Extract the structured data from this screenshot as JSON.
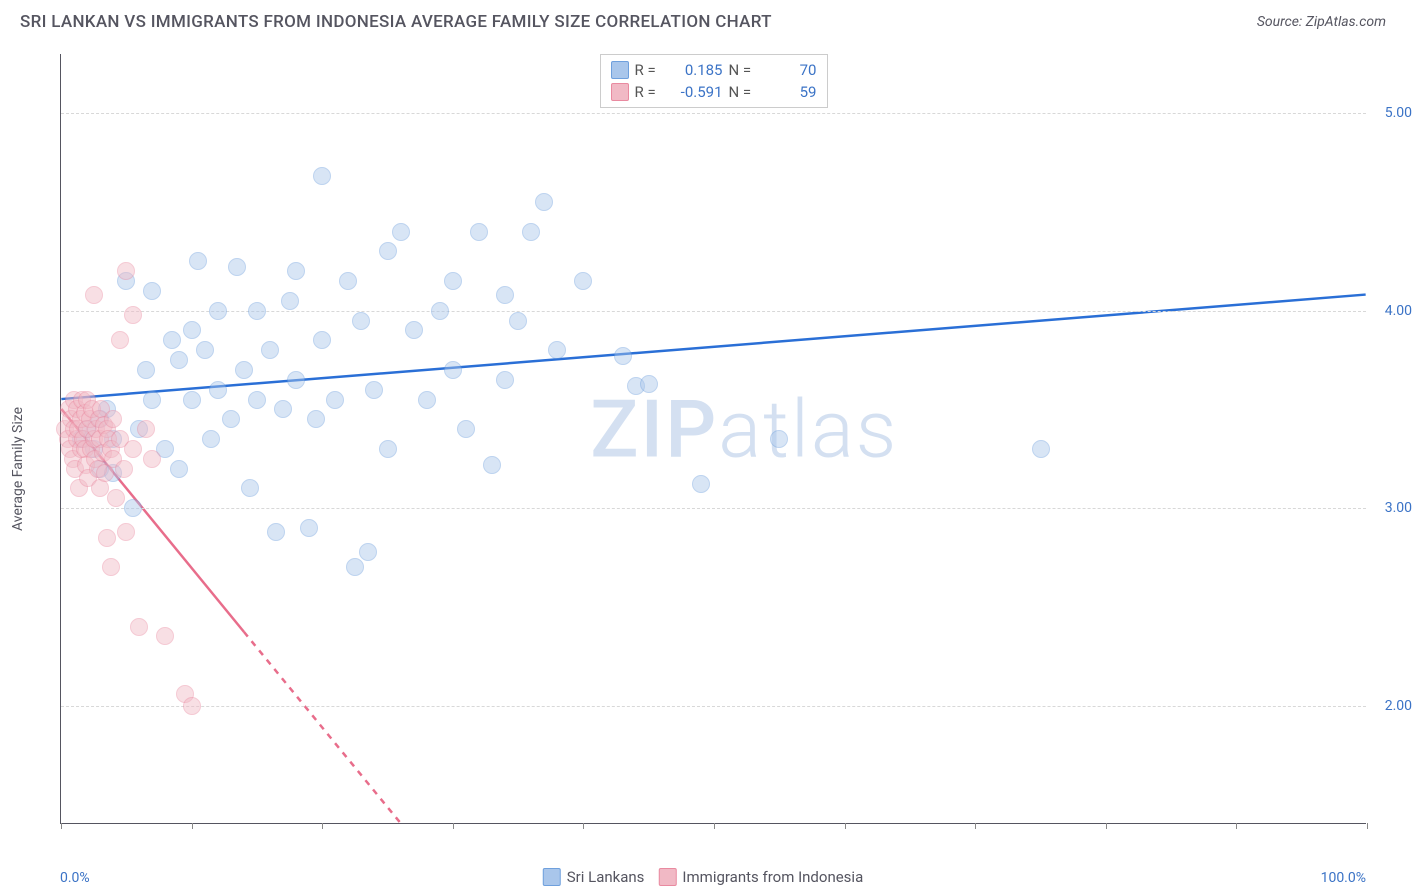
{
  "title": "SRI LANKAN VS IMMIGRANTS FROM INDONESIA AVERAGE FAMILY SIZE CORRELATION CHART",
  "source": "Source: ZipAtlas.com",
  "watermark_zip": "ZIP",
  "watermark_atlas": "atlas",
  "chart": {
    "type": "scatter",
    "xlim": [
      0,
      100
    ],
    "ylim": [
      1.4,
      5.3
    ],
    "x_tick_positions": [
      0,
      10,
      20,
      30,
      40,
      50,
      60,
      70,
      80,
      90,
      100
    ],
    "x_tick_labels": {
      "min": "0.0%",
      "max": "100.0%"
    },
    "y_ticks": [
      2.0,
      3.0,
      4.0,
      5.0
    ],
    "y_tick_labels": [
      "2.00",
      "3.00",
      "4.00",
      "5.00"
    ],
    "ylabel": "Average Family Size",
    "background_color": "#ffffff",
    "grid_color": "#d8d8d8",
    "axis_color": "#555560",
    "tick_label_color": "#3b73c6",
    "marker_radius": 9,
    "marker_opacity": 0.45,
    "series": [
      {
        "name": "Sri Lankans",
        "fill": "#a9c6eb",
        "stroke": "#6fa0dd",
        "line_color": "#2a6fd6",
        "line_width": 2.5,
        "trend": {
          "x1": 0,
          "y1": 3.55,
          "x2": 100,
          "y2": 4.08,
          "solid_until_x": 100
        },
        "R_label": "R =",
        "R": "0.185",
        "N_label": "N =",
        "N": "70",
        "points": [
          [
            1.5,
            3.35
          ],
          [
            2,
            3.4
          ],
          [
            2.5,
            3.3
          ],
          [
            3,
            3.2
          ],
          [
            3,
            3.45
          ],
          [
            3.5,
            3.5
          ],
          [
            4,
            3.35
          ],
          [
            4,
            3.18
          ],
          [
            5,
            4.15
          ],
          [
            5.5,
            3.0
          ],
          [
            6,
            3.4
          ],
          [
            6.5,
            3.7
          ],
          [
            7,
            3.55
          ],
          [
            7,
            4.1
          ],
          [
            8,
            3.3
          ],
          [
            8.5,
            3.85
          ],
          [
            9,
            3.75
          ],
          [
            9,
            3.2
          ],
          [
            10,
            3.9
          ],
          [
            10,
            3.55
          ],
          [
            10.5,
            4.25
          ],
          [
            11,
            3.8
          ],
          [
            11.5,
            3.35
          ],
          [
            12,
            3.6
          ],
          [
            12,
            4.0
          ],
          [
            13,
            3.45
          ],
          [
            13.5,
            4.22
          ],
          [
            14,
            3.7
          ],
          [
            14.5,
            3.1
          ],
          [
            15,
            3.55
          ],
          [
            15,
            4.0
          ],
          [
            16,
            3.8
          ],
          [
            16.5,
            2.88
          ],
          [
            17,
            3.5
          ],
          [
            17.5,
            4.05
          ],
          [
            18,
            3.65
          ],
          [
            18,
            4.2
          ],
          [
            19,
            2.9
          ],
          [
            19.5,
            3.45
          ],
          [
            20,
            4.68
          ],
          [
            20,
            3.85
          ],
          [
            21,
            3.55
          ],
          [
            22,
            4.15
          ],
          [
            22.5,
            2.7
          ],
          [
            23,
            3.95
          ],
          [
            23.5,
            2.78
          ],
          [
            24,
            3.6
          ],
          [
            25,
            4.3
          ],
          [
            25,
            3.3
          ],
          [
            26,
            4.4
          ],
          [
            27,
            3.9
          ],
          [
            28,
            3.55
          ],
          [
            29,
            4.0
          ],
          [
            30,
            4.15
          ],
          [
            30,
            3.7
          ],
          [
            31,
            3.4
          ],
          [
            32,
            4.4
          ],
          [
            33,
            3.22
          ],
          [
            34,
            4.08
          ],
          [
            34,
            3.65
          ],
          [
            35,
            3.95
          ],
          [
            36,
            4.4
          ],
          [
            37,
            4.55
          ],
          [
            38,
            3.8
          ],
          [
            40,
            4.15
          ],
          [
            43,
            3.77
          ],
          [
            44,
            3.62
          ],
          [
            45,
            3.63
          ],
          [
            49,
            3.12
          ],
          [
            55,
            3.35
          ],
          [
            75,
            3.3
          ]
        ]
      },
      {
        "name": "Immigrants from Indonesia",
        "fill": "#f1b9c5",
        "stroke": "#e98aa0",
        "line_color": "#e86d8b",
        "line_width": 2.5,
        "trend": {
          "x1": 0,
          "y1": 3.5,
          "x2": 26,
          "y2": 1.4,
          "solid_until_x": 14
        },
        "R_label": "R =",
        "R": "-0.591",
        "N_label": "N =",
        "N": "59",
        "points": [
          [
            0.3,
            3.4
          ],
          [
            0.5,
            3.35
          ],
          [
            0.6,
            3.5
          ],
          [
            0.7,
            3.3
          ],
          [
            0.8,
            3.45
          ],
          [
            0.9,
            3.25
          ],
          [
            1.0,
            3.4
          ],
          [
            1.0,
            3.55
          ],
          [
            1.1,
            3.2
          ],
          [
            1.2,
            3.35
          ],
          [
            1.2,
            3.5
          ],
          [
            1.3,
            3.4
          ],
          [
            1.4,
            3.1
          ],
          [
            1.5,
            3.45
          ],
          [
            1.5,
            3.3
          ],
          [
            1.6,
            3.55
          ],
          [
            1.7,
            3.35
          ],
          [
            1.8,
            3.3
          ],
          [
            1.8,
            3.48
          ],
          [
            1.9,
            3.22
          ],
          [
            2.0,
            3.4
          ],
          [
            2.0,
            3.55
          ],
          [
            2.1,
            3.15
          ],
          [
            2.2,
            3.45
          ],
          [
            2.3,
            3.3
          ],
          [
            2.4,
            3.5
          ],
          [
            2.5,
            3.35
          ],
          [
            2.5,
            4.08
          ],
          [
            2.6,
            3.25
          ],
          [
            2.7,
            3.4
          ],
          [
            2.8,
            3.2
          ],
          [
            2.9,
            3.45
          ],
          [
            3.0,
            3.1
          ],
          [
            3.0,
            3.35
          ],
          [
            3.1,
            3.5
          ],
          [
            3.2,
            3.28
          ],
          [
            3.3,
            3.42
          ],
          [
            3.4,
            3.18
          ],
          [
            3.5,
            3.4
          ],
          [
            3.5,
            2.85
          ],
          [
            3.6,
            3.35
          ],
          [
            3.8,
            3.3
          ],
          [
            3.8,
            2.7
          ],
          [
            4.0,
            3.25
          ],
          [
            4.0,
            3.45
          ],
          [
            4.2,
            3.05
          ],
          [
            4.5,
            3.35
          ],
          [
            4.5,
            3.85
          ],
          [
            4.8,
            3.2
          ],
          [
            5.0,
            4.2
          ],
          [
            5.0,
            2.88
          ],
          [
            5.5,
            3.3
          ],
          [
            5.5,
            3.98
          ],
          [
            6.0,
            2.4
          ],
          [
            6.5,
            3.4
          ],
          [
            7.0,
            3.25
          ],
          [
            8.0,
            2.35
          ],
          [
            9.5,
            2.06
          ],
          [
            10.0,
            2.0
          ]
        ]
      }
    ]
  },
  "legend_bottom": [
    {
      "label": "Sri Lankans",
      "fill": "#a9c6eb",
      "stroke": "#6fa0dd"
    },
    {
      "label": "Immigrants from Indonesia",
      "fill": "#f1b9c5",
      "stroke": "#e98aa0"
    }
  ]
}
